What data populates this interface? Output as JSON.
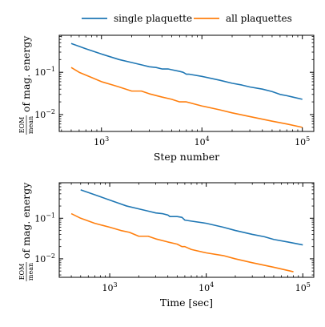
{
  "legend": {
    "position": "top-center",
    "entries": [
      {
        "label": "single plaquette",
        "color": "#1f77b4"
      },
      {
        "label": "all plaquettes",
        "color": "#ff7f0e"
      }
    ]
  },
  "chart_data": [
    {
      "type": "line",
      "xlabel": "Step number",
      "ylabel_fraction_num": "EOM",
      "ylabel_fraction_den": "mean",
      "ylabel_rest": "of mag. energy",
      "xscale": "log",
      "yscale": "log",
      "xlim": [
        380,
        130000
      ],
      "ylim": [
        0.004,
        0.75
      ],
      "xticks": [
        {
          "value": 1000,
          "base": "10",
          "exp": "3"
        },
        {
          "value": 10000,
          "base": "10",
          "exp": "4"
        },
        {
          "value": 100000,
          "base": "10",
          "exp": "5"
        }
      ],
      "yticks": [
        {
          "value": 0.1,
          "base": "10",
          "exp": "−1"
        },
        {
          "value": 0.01,
          "base": "10",
          "exp": "−2"
        }
      ],
      "grid": false,
      "series": [
        {
          "name": "single plaquette",
          "color": "#1f77b4",
          "x": [
            500,
            700,
            1000,
            1500,
            2000,
            2500,
            3000,
            3500,
            4000,
            4600,
            5000,
            6000,
            6500,
            7000,
            7500,
            10000,
            15000,
            20000,
            25000,
            30000,
            40000,
            50000,
            60000,
            70000,
            80000,
            100000
          ],
          "y": [
            0.48,
            0.36,
            0.27,
            0.2,
            0.17,
            0.15,
            0.135,
            0.13,
            0.12,
            0.12,
            0.115,
            0.105,
            0.1,
            0.09,
            0.09,
            0.08,
            0.065,
            0.055,
            0.05,
            0.045,
            0.04,
            0.035,
            0.03,
            0.028,
            0.026,
            0.023
          ]
        },
        {
          "name": "all plaquettes",
          "color": "#ff7f0e",
          "x": [
            500,
            600,
            800,
            1000,
            1300,
            1500,
            2000,
            2500,
            3000,
            4000,
            5000,
            6000,
            7000,
            10000,
            15000,
            20000,
            30000,
            50000,
            70000,
            100000
          ],
          "y": [
            0.13,
            0.1,
            0.075,
            0.06,
            0.05,
            0.045,
            0.036,
            0.036,
            0.031,
            0.026,
            0.023,
            0.02,
            0.02,
            0.016,
            0.013,
            0.011,
            0.009,
            0.007,
            0.006,
            0.005
          ]
        }
      ]
    },
    {
      "type": "line",
      "xlabel": "Time [sec]",
      "ylabel_fraction_num": "EOM",
      "ylabel_fraction_den": "mean",
      "ylabel_rest": "of mag. energy",
      "xscale": "log",
      "yscale": "log",
      "xlim": [
        300,
        130000
      ],
      "ylim": [
        0.0035,
        0.75
      ],
      "xticks": [
        {
          "value": 1000,
          "base": "10",
          "exp": "3"
        },
        {
          "value": 10000,
          "base": "10",
          "exp": "4"
        },
        {
          "value": 100000,
          "base": "10",
          "exp": "5"
        }
      ],
      "yticks": [
        {
          "value": 0.1,
          "base": "10",
          "exp": "−1"
        },
        {
          "value": 0.01,
          "base": "10",
          "exp": "−2"
        }
      ],
      "grid": false,
      "series": [
        {
          "name": "single plaquette",
          "color": "#1f77b4",
          "x": [
            500,
            700,
            1000,
            1500,
            2000,
            2500,
            3000,
            3500,
            4000,
            4200,
            5000,
            5600,
            6000,
            7000,
            10000,
            15000,
            20000,
            30000,
            40000,
            50000,
            70000,
            100000
          ],
          "y": [
            0.5,
            0.38,
            0.28,
            0.2,
            0.17,
            0.15,
            0.135,
            0.13,
            0.12,
            0.11,
            0.11,
            0.105,
            0.09,
            0.085,
            0.075,
            0.06,
            0.05,
            0.04,
            0.035,
            0.03,
            0.026,
            0.022
          ]
        },
        {
          "name": "all plaquettes",
          "color": "#ff7f0e",
          "x": [
            400,
            500,
            700,
            1000,
            1300,
            1600,
            2000,
            2500,
            3000,
            4000,
            5000,
            5600,
            6000,
            7000,
            10000,
            15000,
            20000,
            30000,
            50000,
            80000
          ],
          "y": [
            0.13,
            0.1,
            0.075,
            0.06,
            0.05,
            0.045,
            0.036,
            0.036,
            0.031,
            0.026,
            0.023,
            0.02,
            0.02,
            0.017,
            0.014,
            0.012,
            0.01,
            0.008,
            0.0062,
            0.0048
          ]
        }
      ]
    }
  ]
}
